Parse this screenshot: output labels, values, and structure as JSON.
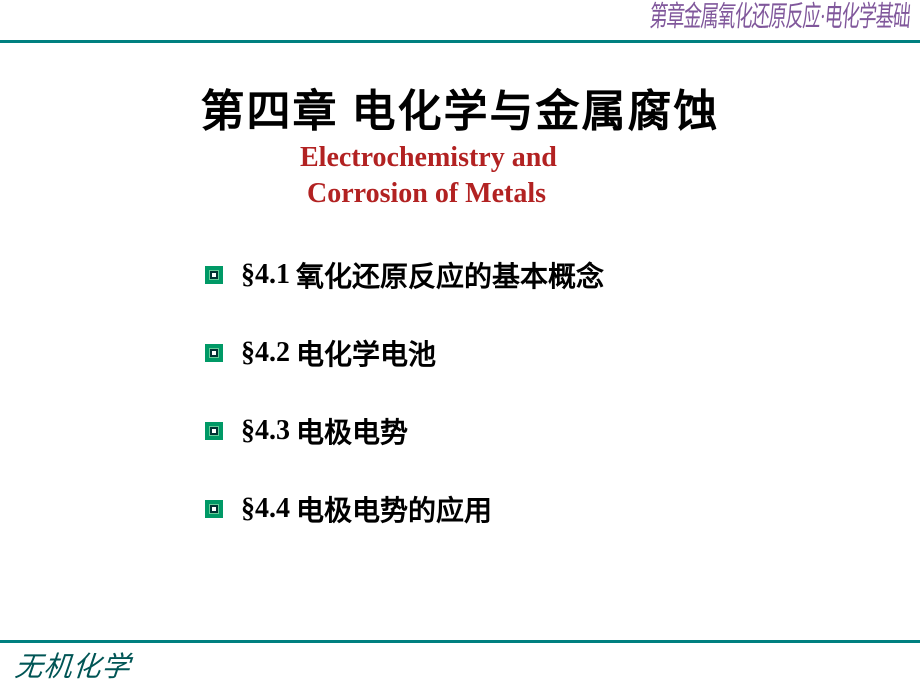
{
  "watermark_top": "第章金属氧化还原反应·电化学基础",
  "title_cn": "第四章  电化学与金属腐蚀",
  "subtitle_en_line1": "Electrochemistry  and",
  "subtitle_en_line2": "Corrosion of Metals",
  "toc": [
    {
      "num": "§4.1",
      "title": "氧化还原反应的基本概念"
    },
    {
      "num": "§4.2",
      "title": "电化学电池"
    },
    {
      "num": "§4.3",
      "title": "电极电势"
    },
    {
      "num": "§4.4",
      "title": "电极电势的应用"
    }
  ],
  "footer": "无机化学",
  "colors": {
    "line": "#008080",
    "subtitle": "#b22222",
    "bullet_outer": "#009966",
    "bullet_inner": "#003333",
    "footer": "#005555",
    "watermark": "#6a3a8a"
  },
  "fonts": {
    "title_cn_size": 44,
    "subtitle_size": 28,
    "toc_size": 28,
    "footer_size": 28
  }
}
